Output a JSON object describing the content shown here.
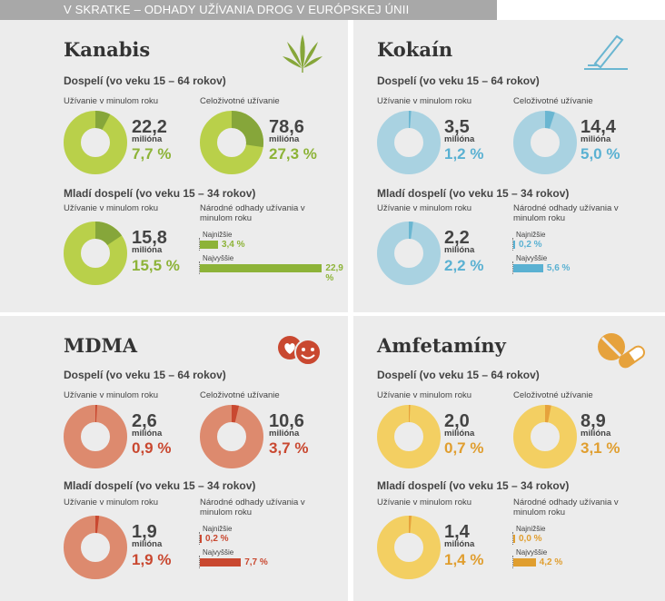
{
  "header": {
    "title": "V SKRATKE – ODHADY UŽÍVANIA DROG V EURÓPSKEJ ÚNII"
  },
  "colors": {
    "kanabis": "#b9d04a",
    "kanabis_dark": "#86a63a",
    "kanabis_text": "#8db338",
    "kokain": "#a9d2e1",
    "kokain_dark": "#6ab6d1",
    "kokain_text": "#5ab1d2",
    "mdma": "#dd8a6e",
    "mdma_dark": "#c94830",
    "mdma_text": "#c94830",
    "amf": "#f3cf62",
    "amf_dark": "#e6a23c",
    "amf_text": "#e09e2f"
  },
  "panels": {
    "kanabis": {
      "title": "Kanabis",
      "icon": "cannabis-leaf-icon",
      "adult_heading": "Dospelí (vo veku 15 – 64 rokov)",
      "last_year_label": "Užívanie v minulom roku",
      "last_year_value": "22,2",
      "last_year_unit": "milióna",
      "last_year_pct": "7,7 %",
      "last_year_frac": 0.077,
      "lifetime_label": "Celoživotné užívanie",
      "lifetime_value": "78,6",
      "lifetime_unit": "milióna",
      "lifetime_pct": "27,3 %",
      "lifetime_frac": 0.273,
      "young_heading": "Mladí dospelí (vo veku 15 – 34 rokov)",
      "young_label": "Užívanie v minulom roku",
      "young_value": "15,8",
      "young_unit": "milióna",
      "young_pct": "15,5 %",
      "young_frac": 0.155,
      "national_label": "Národné odhady užívania v minulom roku",
      "lowest_label": "Najnižšie",
      "lowest_value": "3,4 %",
      "lowest_num": 3.4,
      "highest_label": "Najvyššie",
      "highest_value": "22,9 %",
      "highest_num": 22.9
    },
    "kokain": {
      "title": "Kokaín",
      "icon": "cocaine-line-icon",
      "adult_heading": "Dospelí (vo veku 15 – 64 rokov)",
      "last_year_label": "Užívanie v minulom roku",
      "last_year_value": "3,5",
      "last_year_unit": "milióna",
      "last_year_pct": "1,2 %",
      "last_year_frac": 0.012,
      "lifetime_label": "Celoživotné užívanie",
      "lifetime_value": "14,4",
      "lifetime_unit": "milióna",
      "lifetime_pct": "5,0 %",
      "lifetime_frac": 0.05,
      "young_heading": "Mladí dospelí (vo veku 15 – 34 rokov)",
      "young_label": "Užívanie v minulom roku",
      "young_value": "2,2",
      "young_unit": "milióna",
      "young_pct": "2,2 %",
      "young_frac": 0.022,
      "national_label": "Národné odhady užívania v minulom roku",
      "lowest_label": "Najnižšie",
      "lowest_value": "0,2 %",
      "lowest_num": 0.2,
      "highest_label": "Najvyššie",
      "highest_value": "5,6 %",
      "highest_num": 5.6
    },
    "mdma": {
      "title": "MDMA",
      "icon": "smiley-pills-icon",
      "adult_heading": "Dospelí (vo veku 15 – 64 rokov)",
      "last_year_label": "Užívanie v minulom roku",
      "last_year_value": "2,6",
      "last_year_unit": "milióna",
      "last_year_pct": "0,9 %",
      "last_year_frac": 0.009,
      "lifetime_label": "Celoživotné užívanie",
      "lifetime_value": "10,6",
      "lifetime_unit": "milióna",
      "lifetime_pct": "3,7 %",
      "lifetime_frac": 0.037,
      "young_heading": "Mladí dospelí (vo veku 15 – 34 rokov)",
      "young_label": "Užívanie v minulom roku",
      "young_value": "1,9",
      "young_unit": "milióna",
      "young_pct": "1,9 %",
      "young_frac": 0.019,
      "national_label": "Národné odhady užívania v minulom roku",
      "lowest_label": "Najnižšie",
      "lowest_value": "0,2 %",
      "lowest_num": 0.2,
      "highest_label": "Najvyššie",
      "highest_value": "7,7 %",
      "highest_num": 7.7
    },
    "amf": {
      "title": "Amfetamíny",
      "icon": "pills-capsule-icon",
      "adult_heading": "Dospelí (vo veku 15 – 64 rokov)",
      "last_year_label": "Užívanie v minulom roku",
      "last_year_value": "2,0",
      "last_year_unit": "milióna",
      "last_year_pct": "0,7 %",
      "last_year_frac": 0.007,
      "lifetime_label": "Celoživotné užívanie",
      "lifetime_value": "8,9",
      "lifetime_unit": "milióna",
      "lifetime_pct": "3,1 %",
      "lifetime_frac": 0.031,
      "young_heading": "Mladí dospelí (vo veku 15 – 34 rokov)",
      "young_label": "Užívanie v minulom roku",
      "young_value": "1,4",
      "young_unit": "milióna",
      "young_pct": "1,4 %",
      "young_frac": 0.014,
      "national_label": "Národné odhady užívania v minulom roku",
      "lowest_label": "Najnižšie",
      "lowest_value": "0,0 %",
      "lowest_num": 0.0,
      "highest_label": "Najvyššie",
      "highest_value": "4,2 %",
      "highest_num": 4.2
    }
  }
}
